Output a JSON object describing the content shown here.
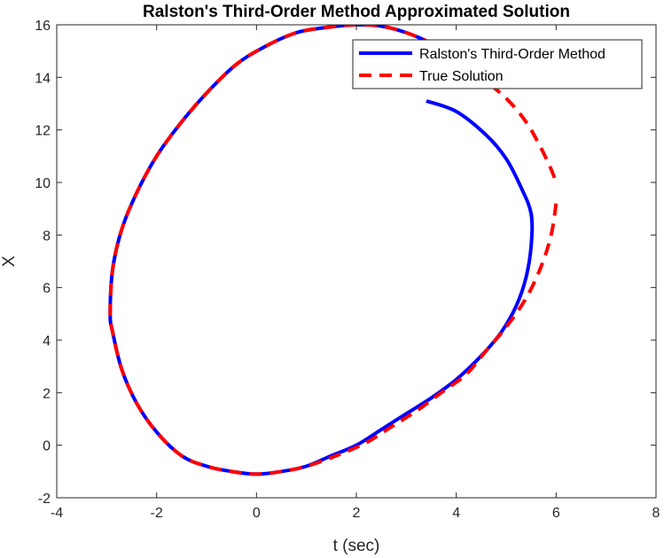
{
  "chart_data": {
    "type": "line",
    "title": "Ralston's Third-Order Method Approximated Solution",
    "xlabel": "t (sec)",
    "ylabel": "X",
    "xlim": [
      -4,
      8
    ],
    "ylim": [
      -2,
      16
    ],
    "xticks": [
      -4,
      -2,
      0,
      2,
      4,
      6,
      8
    ],
    "yticks": [
      -2,
      0,
      2,
      4,
      6,
      8,
      10,
      12,
      14,
      16
    ],
    "grid": false,
    "legend_position": "top-right",
    "series": [
      {
        "name": "Ralston's Third-Order Method",
        "color": "#0000ff",
        "style": "solid",
        "x": [
          3.4,
          4.0,
          4.6,
          5.0,
          5.3,
          5.5,
          5.5,
          5.4,
          5.2,
          4.9,
          4.5,
          4.0,
          3.5,
          3.0,
          2.5,
          2.0,
          1.5,
          1.0,
          0.5,
          0.0,
          -0.5,
          -1.0,
          -1.5,
          -2.0,
          -2.4,
          -2.7,
          -2.88,
          -2.93,
          -2.88,
          -2.7,
          -2.4,
          -2.0,
          -1.5,
          -1.0,
          -0.4,
          0.2,
          0.8,
          1.4,
          2.0,
          2.5,
          3.0,
          3.5,
          4.0,
          4.5
        ],
        "y": [
          13.1,
          12.7,
          11.8,
          10.9,
          9.8,
          8.8,
          7.6,
          6.4,
          5.3,
          4.3,
          3.4,
          2.5,
          1.8,
          1.2,
          0.6,
          0.0,
          -0.4,
          -0.8,
          -1.0,
          -1.1,
          -1.0,
          -0.8,
          -0.4,
          0.5,
          1.6,
          2.9,
          4.3,
          5.0,
          6.7,
          8.2,
          9.6,
          11.0,
          12.3,
          13.4,
          14.5,
          15.2,
          15.7,
          15.9,
          16.0,
          15.95,
          15.7,
          15.3,
          14.8,
          14.0
        ]
      },
      {
        "name": "True Solution",
        "color": "#ff0000",
        "style": "dashed",
        "x": [
          6.0,
          5.9,
          5.7,
          5.4,
          5.0,
          4.6,
          4.2,
          3.7,
          3.2,
          2.7,
          2.2,
          1.6,
          1.0,
          0.5,
          0.0,
          -0.5,
          -1.0,
          -1.5,
          -2.0,
          -2.4,
          -2.7,
          -2.88,
          -2.93,
          -2.88,
          -2.7,
          -2.4,
          -2.0,
          -1.5,
          -1.0,
          -0.4,
          0.2,
          0.8,
          1.4,
          2.0,
          2.5,
          3.0,
          3.5,
          4.0,
          4.5,
          5.0,
          5.4,
          5.7,
          5.9,
          6.0
        ],
        "y": [
          9.2,
          8.0,
          6.8,
          5.6,
          4.5,
          3.6,
          2.7,
          2.0,
          1.3,
          0.7,
          0.1,
          -0.4,
          -0.8,
          -1.0,
          -1.1,
          -1.0,
          -0.8,
          -0.4,
          0.5,
          1.6,
          2.9,
          4.3,
          5.0,
          6.7,
          8.2,
          9.6,
          11.0,
          12.3,
          13.4,
          14.5,
          15.2,
          15.7,
          15.9,
          16.0,
          15.95,
          15.7,
          15.3,
          14.8,
          14.0,
          13.2,
          12.3,
          11.3,
          10.5,
          10.0
        ]
      }
    ]
  }
}
